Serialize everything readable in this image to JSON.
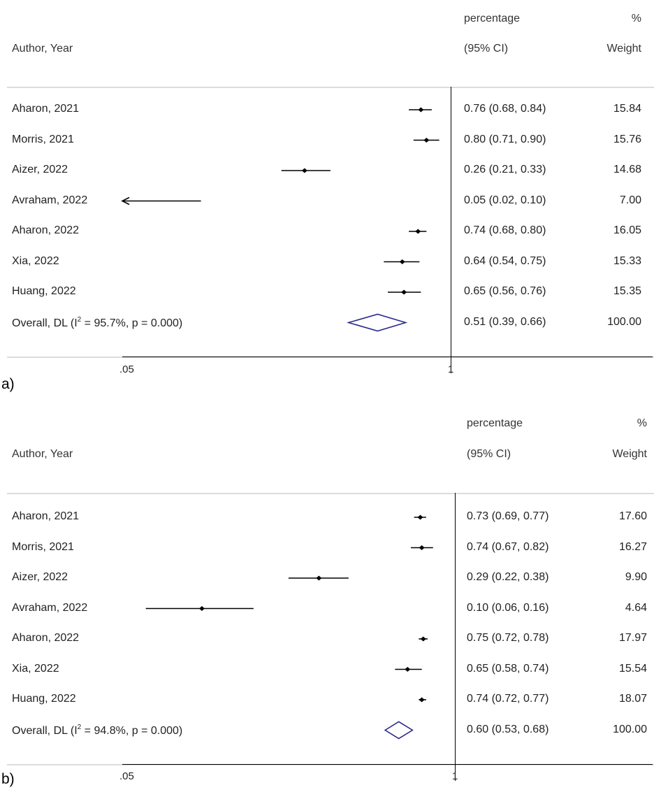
{
  "colors": {
    "diamond": "#2a2a8c",
    "marker": "#000000",
    "grid": "#dcdcdc"
  },
  "chart_data": [
    {
      "type": "forest",
      "panel_label": "a)",
      "header": {
        "author_col": "Author, Year",
        "es_col_line1": "percentage",
        "es_col_line2": "(95% CI)",
        "w_col_line1": "%",
        "w_col_line2": "Weight"
      },
      "xscale": "log",
      "reference_line": 1,
      "ticks": [
        ".05",
        "1"
      ],
      "studies": [
        {
          "label": "Aharon, 2021",
          "es": 0.76,
          "lo": 0.68,
          "hi": 0.84,
          "ci_text": "0.76 (0.68, 0.84)",
          "weight": "15.84"
        },
        {
          "label": "Morris, 2021",
          "es": 0.8,
          "lo": 0.71,
          "hi": 0.9,
          "ci_text": "0.80 (0.71, 0.90)",
          "weight": "15.76"
        },
        {
          "label": "Aizer, 2022",
          "es": 0.26,
          "lo": 0.21,
          "hi": 0.33,
          "ci_text": "0.26 (0.21, 0.33)",
          "weight": "14.68"
        },
        {
          "label": "Avraham, 2022",
          "es": 0.05,
          "lo": 0.02,
          "hi": 0.1,
          "ci_text": "0.05 (0.02, 0.10)",
          "weight": "7.00",
          "truncated": true
        },
        {
          "label": "Aharon, 2022",
          "es": 0.74,
          "lo": 0.68,
          "hi": 0.8,
          "ci_text": "0.74 (0.68, 0.80)",
          "weight": "16.05"
        },
        {
          "label": "Xia, 2022",
          "es": 0.64,
          "lo": 0.54,
          "hi": 0.75,
          "ci_text": "0.64 (0.54, 0.75)",
          "weight": "15.33"
        },
        {
          "label": "Huang, 2022",
          "es": 0.65,
          "lo": 0.56,
          "hi": 0.76,
          "ci_text": "0.65 (0.56, 0.76)",
          "weight": "15.35"
        }
      ],
      "overall": {
        "label_pre": "Overall, DL (I",
        "label_sup": "2",
        "label_post": " = 95.7%, p = 0.000)",
        "es": 0.51,
        "lo": 0.39,
        "hi": 0.66,
        "ci_text": "0.51 (0.39, 0.66)",
        "weight": "100.00"
      }
    },
    {
      "type": "forest",
      "panel_label": "b)",
      "header": {
        "author_col": "Author, Year",
        "es_col_line1": "percentage",
        "es_col_line2": "(95% CI)",
        "w_col_line1": "%",
        "w_col_line2": "Weight"
      },
      "xscale": "log",
      "reference_line": 1,
      "ticks": [
        ".05",
        "1"
      ],
      "studies": [
        {
          "label": "Aharon, 2021",
          "es": 0.73,
          "lo": 0.69,
          "hi": 0.77,
          "ci_text": "0.73 (0.69, 0.77)",
          "weight": "17.60"
        },
        {
          "label": "Morris, 2021",
          "es": 0.74,
          "lo": 0.67,
          "hi": 0.82,
          "ci_text": "0.74 (0.67, 0.82)",
          "weight": "16.27"
        },
        {
          "label": "Aizer, 2022",
          "es": 0.29,
          "lo": 0.22,
          "hi": 0.38,
          "ci_text": "0.29 (0.22, 0.38)",
          "weight": "9.90"
        },
        {
          "label": "Avraham, 2022",
          "es": 0.1,
          "lo": 0.06,
          "hi": 0.16,
          "ci_text": "0.10 (0.06, 0.16)",
          "weight": "4.64"
        },
        {
          "label": "Aharon, 2022",
          "es": 0.75,
          "lo": 0.72,
          "hi": 0.78,
          "ci_text": "0.75 (0.72, 0.78)",
          "weight": "17.97"
        },
        {
          "label": "Xia, 2022",
          "es": 0.65,
          "lo": 0.58,
          "hi": 0.74,
          "ci_text": "0.65 (0.58, 0.74)",
          "weight": "15.54"
        },
        {
          "label": "Huang, 2022",
          "es": 0.74,
          "lo": 0.72,
          "hi": 0.77,
          "ci_text": "0.74 (0.72, 0.77)",
          "weight": "18.07"
        }
      ],
      "overall": {
        "label_pre": "Overall, DL (I",
        "label_sup": "2",
        "label_post": " = 94.8%, p = 0.000)",
        "es": 0.6,
        "lo": 0.53,
        "hi": 0.68,
        "ci_text": "0.60 (0.53, 0.68)",
        "weight": "100.00"
      }
    }
  ]
}
